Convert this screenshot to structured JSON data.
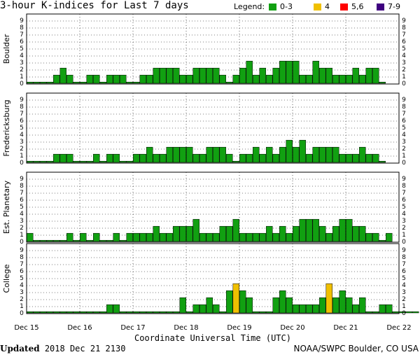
{
  "title": "3-hour K-indices for Last 7 days",
  "legend": {
    "title": "Legend:",
    "items": [
      {
        "label": "0-3",
        "color": "#11a011"
      },
      {
        "label": "4",
        "color": "#f0c000"
      },
      {
        "label": "5,6",
        "color": "#ff0000"
      },
      {
        "label": "7-9",
        "color": "#3f0080"
      }
    ]
  },
  "footer": {
    "updated_label": "Updated",
    "updated_value": "2018 Dec 21 2130",
    "credit": "NOAA/SWPC Boulder, CO USA"
  },
  "chart_data": {
    "type": "bar",
    "xlabel": "Coordinate Universal Time (UTC)",
    "x_ticks": [
      "Dec 15",
      "Dec 16",
      "Dec 17",
      "Dec 18",
      "Dec 19",
      "Dec 20",
      "Dec 21",
      "Dec 22"
    ],
    "y_ticks": [
      "0",
      "1",
      "2",
      "3",
      "4",
      "5",
      "6",
      "7",
      "8",
      "9"
    ],
    "ylim": [
      0,
      9
    ],
    "grid": true,
    "bar_interval_hours": 3,
    "color_scale": {
      "0-3": "#11a011",
      "4": "#f0c000",
      "5,6": "#ff0000",
      "7-9": "#3f0080"
    },
    "panels": [
      {
        "name": "Boulder",
        "values": [
          0,
          0,
          0,
          0,
          1,
          2,
          1,
          0,
          0,
          1,
          1,
          0,
          1,
          1,
          1,
          0,
          0,
          1,
          1,
          2,
          2,
          2,
          2,
          1,
          1,
          2,
          2,
          2,
          2,
          1,
          0,
          1,
          2,
          3,
          1,
          2,
          1,
          2,
          3,
          3,
          3,
          1,
          1,
          3,
          2,
          2,
          1,
          1,
          1,
          2,
          1,
          2,
          2,
          0
        ]
      },
      {
        "name": "Fredericksburg",
        "values": [
          0,
          0,
          0,
          0,
          1,
          1,
          1,
          0,
          0,
          0,
          1,
          0,
          1,
          1,
          0,
          0,
          1,
          1,
          2,
          1,
          1,
          2,
          2,
          2,
          2,
          1,
          1,
          2,
          2,
          2,
          1,
          0,
          1,
          1,
          2,
          1,
          2,
          1,
          2,
          3,
          2,
          3,
          1,
          2,
          2,
          2,
          2,
          1,
          1,
          1,
          2,
          1,
          1,
          0
        ]
      },
      {
        "name": "Est. Planetary",
        "values": [
          1,
          0,
          0,
          0,
          0,
          0,
          1,
          0,
          1,
          0,
          1,
          0,
          0,
          1,
          0,
          1,
          1,
          1,
          1,
          2,
          1,
          1,
          2,
          2,
          2,
          3,
          1,
          1,
          1,
          2,
          2,
          3,
          1,
          1,
          1,
          1,
          2,
          1,
          2,
          1,
          2,
          3,
          3,
          3,
          2,
          1,
          2,
          3,
          3,
          2,
          2,
          1,
          1,
          0,
          1
        ]
      },
      {
        "name": "College",
        "values": [
          0,
          0,
          0,
          0,
          0,
          0,
          0,
          0,
          0,
          0,
          0,
          0,
          1,
          1,
          0,
          0,
          0,
          0,
          0,
          0,
          0,
          0,
          0,
          2,
          0,
          1,
          1,
          2,
          1,
          0,
          3,
          4,
          3,
          2,
          0,
          0,
          0,
          2,
          3,
          2,
          1,
          1,
          1,
          1,
          2,
          4,
          2,
          3,
          2,
          1,
          2,
          0,
          0,
          1,
          1,
          0,
          0,
          0,
          0
        ]
      }
    ]
  }
}
